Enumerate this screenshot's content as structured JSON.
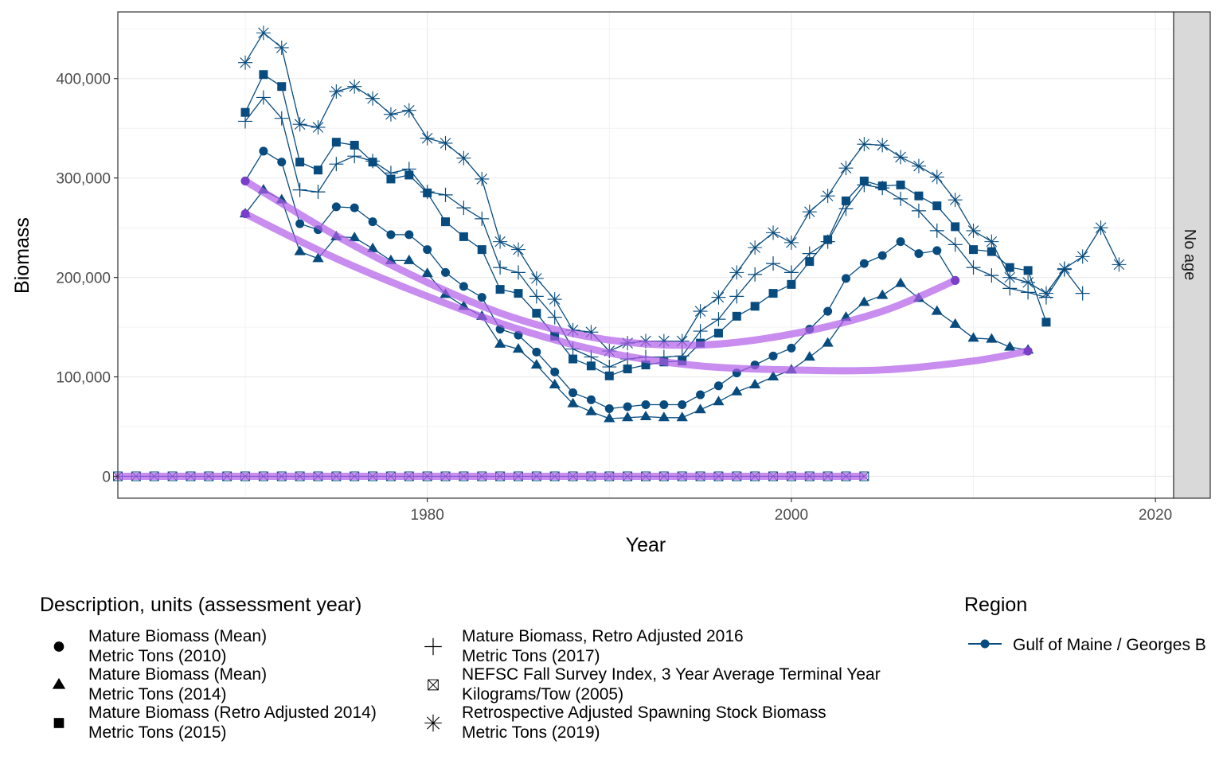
{
  "chart_data": {
    "type": "line",
    "xlabel": "Year",
    "ylabel": "Biomass",
    "xlim": [
      1963,
      2021
    ],
    "ylim": [
      -22000,
      467000
    ],
    "x_ticks": [
      1980,
      2000,
      2020
    ],
    "y_ticks": [
      0,
      100000,
      200000,
      300000,
      400000
    ],
    "y_tick_labels": [
      "0",
      "100,000",
      "200,000",
      "300,000",
      "400,000"
    ],
    "grid": true,
    "facet_label": "No age",
    "colors": {
      "series": "#084c7f",
      "trend": "#b05ce8",
      "panel_border": "#333333",
      "grid": "#ebebeb",
      "strip": "#d9d9d9"
    },
    "legend_title": "Description, units (assessment year)",
    "region_legend_title": "Region",
    "region_legend_label": "Gulf of Maine / Georges B",
    "series": [
      {
        "label_line1": "Mature Biomass (Mean)",
        "label_line2": "Metric Tons (2010)",
        "marker": "circle",
        "x": [
          1970,
          1971,
          1972,
          1973,
          1974,
          1975,
          1976,
          1977,
          1978,
          1979,
          1980,
          1981,
          1982,
          1983,
          1984,
          1985,
          1986,
          1987,
          1988,
          1989,
          1990,
          1991,
          1992,
          1993,
          1994,
          1995,
          1996,
          1997,
          1998,
          1999,
          2000,
          2001,
          2002,
          2003,
          2004,
          2005,
          2006,
          2007,
          2008,
          2009
        ],
        "y": [
          297000,
          327000,
          316000,
          254000,
          248000,
          271000,
          270000,
          256000,
          243000,
          243000,
          228000,
          205000,
          191000,
          180000,
          148000,
          142000,
          125000,
          105000,
          84000,
          77000,
          68000,
          70000,
          72000,
          72000,
          72000,
          82000,
          91000,
          104000,
          112000,
          121000,
          129000,
          148000,
          166000,
          199000,
          214000,
          222000,
          236000,
          224000,
          227000,
          197000
        ]
      },
      {
        "label_line1": "Mature Biomass (Mean)",
        "label_line2": "Metric Tons (2014)",
        "marker": "triangle",
        "x": [
          1970,
          1971,
          1972,
          1973,
          1974,
          1975,
          1976,
          1977,
          1978,
          1979,
          1980,
          1981,
          1982,
          1983,
          1984,
          1985,
          1986,
          1987,
          1988,
          1989,
          1990,
          1991,
          1992,
          1993,
          1994,
          1995,
          1996,
          1997,
          1998,
          1999,
          2000,
          2001,
          2002,
          2003,
          2004,
          2005,
          2006,
          2007,
          2008,
          2009,
          2010,
          2011,
          2012,
          2013
        ],
        "y": [
          264000,
          288000,
          278000,
          226000,
          219000,
          241000,
          240000,
          229000,
          217000,
          217000,
          204000,
          183000,
          171000,
          161000,
          133000,
          128000,
          112000,
          92000,
          73000,
          65000,
          58000,
          59000,
          60000,
          59000,
          59000,
          67000,
          75000,
          85000,
          92000,
          100000,
          107000,
          120000,
          134000,
          160000,
          175000,
          182000,
          194000,
          179000,
          166000,
          153000,
          139000,
          138000,
          130000,
          127000
        ]
      },
      {
        "label_line1": "Mature Biomass (Retro Adjusted 2014)",
        "label_line2": "Metric Tons (2015)",
        "marker": "square",
        "x": [
          1970,
          1971,
          1972,
          1973,
          1974,
          1975,
          1976,
          1977,
          1978,
          1979,
          1980,
          1981,
          1982,
          1983,
          1984,
          1985,
          1986,
          1987,
          1988,
          1989,
          1990,
          1991,
          1992,
          1993,
          1994,
          1995,
          1996,
          1997,
          1998,
          1999,
          2000,
          2001,
          2002,
          2003,
          2004,
          2005,
          2006,
          2007,
          2008,
          2009,
          2010,
          2011,
          2012,
          2013,
          2014
        ],
        "y": [
          366000,
          404000,
          392000,
          316000,
          308000,
          336000,
          333000,
          316000,
          299000,
          303000,
          285000,
          256000,
          241000,
          228000,
          188000,
          184000,
          164000,
          141000,
          118000,
          111000,
          101000,
          108000,
          112000,
          115000,
          116000,
          134000,
          144000,
          161000,
          171000,
          184000,
          193000,
          216000,
          238000,
          277000,
          297000,
          292000,
          293000,
          282000,
          272000,
          251000,
          228000,
          226000,
          210000,
          207000,
          155000
        ]
      },
      {
        "label_line1": "Mature Biomass, Retro Adjusted 2016",
        "label_line2": "Metric Tons (2017)",
        "marker": "plus",
        "x": [
          1970,
          1971,
          1972,
          1973,
          1974,
          1975,
          1976,
          1977,
          1978,
          1979,
          1980,
          1981,
          1982,
          1983,
          1984,
          1985,
          1986,
          1987,
          1988,
          1989,
          1990,
          1991,
          1992,
          1993,
          1994,
          1995,
          1996,
          1997,
          1998,
          1999,
          2000,
          2001,
          2002,
          2003,
          2004,
          2005,
          2006,
          2007,
          2008,
          2009,
          2010,
          2011,
          2012,
          2013,
          2014,
          2015,
          2016
        ],
        "y": [
          357000,
          381000,
          360000,
          288000,
          286000,
          314000,
          322000,
          317000,
          305000,
          309000,
          286000,
          283000,
          270000,
          259000,
          210000,
          205000,
          181000,
          160000,
          128000,
          120000,
          110000,
          118000,
          120000,
          120000,
          121000,
          146000,
          158000,
          181000,
          203000,
          214000,
          205000,
          224000,
          236000,
          269000,
          293000,
          290000,
          279000,
          267000,
          247000,
          233000,
          210000,
          202000,
          189000,
          185000,
          180000,
          208000,
          184000
        ]
      },
      {
        "label_line1": "NEFSC Fall Survey Index, 3 Year Average Terminal Year",
        "label_line2": "Kilograms/Tow (2005)",
        "marker": "boxcross",
        "x": [
          1963,
          1964,
          1965,
          1966,
          1967,
          1968,
          1969,
          1970,
          1971,
          1972,
          1973,
          1974,
          1975,
          1976,
          1977,
          1978,
          1979,
          1980,
          1981,
          1982,
          1983,
          1984,
          1985,
          1986,
          1987,
          1988,
          1989,
          1990,
          1991,
          1992,
          1993,
          1994,
          1995,
          1996,
          1997,
          1998,
          1999,
          2000,
          2001,
          2002,
          2003,
          2004
        ],
        "y": [
          0,
          0,
          0,
          0,
          0,
          0,
          0,
          0,
          0,
          0,
          0,
          0,
          0,
          0,
          0,
          0,
          0,
          0,
          0,
          0,
          0,
          0,
          0,
          0,
          0,
          0,
          0,
          0,
          0,
          0,
          0,
          0,
          0,
          0,
          0,
          0,
          0,
          0,
          0,
          0,
          0,
          0
        ]
      },
      {
        "label_line1": "Retrospective Adjusted Spawning Stock Biomass",
        "label_line2": "Metric Tons (2019)",
        "marker": "asterisk",
        "x": [
          1970,
          1971,
          1972,
          1973,
          1974,
          1975,
          1976,
          1977,
          1978,
          1979,
          1980,
          1981,
          1982,
          1983,
          1984,
          1985,
          1986,
          1987,
          1988,
          1989,
          1990,
          1991,
          1992,
          1993,
          1994,
          1995,
          1996,
          1997,
          1998,
          1999,
          2000,
          2001,
          2002,
          2003,
          2004,
          2005,
          2006,
          2007,
          2008,
          2009,
          2010,
          2011,
          2012,
          2013,
          2014,
          2015,
          2016,
          2017,
          2018
        ],
        "y": [
          416000,
          446000,
          431000,
          354000,
          351000,
          387000,
          392000,
          380000,
          364000,
          368000,
          340000,
          335000,
          320000,
          299000,
          236000,
          228000,
          199000,
          178000,
          147000,
          145000,
          126000,
          134000,
          136000,
          136000,
          136000,
          166000,
          180000,
          205000,
          230000,
          245000,
          235000,
          266000,
          282000,
          310000,
          334000,
          333000,
          321000,
          312000,
          301000,
          278000,
          247000,
          236000,
          200000,
          195000,
          184000,
          209000,
          221000,
          250000,
          213000
        ]
      }
    ],
    "trend_lines": [
      {
        "x": [
          1970,
          1975,
          1980,
          1985,
          1990,
          1995,
          2000,
          2005,
          2009
        ],
        "y": [
          297000,
          242000,
          195000,
          158000,
          137000,
          132000,
          143000,
          166000,
          197000
        ]
      },
      {
        "x": [
          1970,
          1975,
          1980,
          1985,
          1990,
          1995,
          2000,
          2005,
          2010,
          2013
        ],
        "y": [
          264000,
          219000,
          181000,
          148000,
          124000,
          111000,
          107000,
          107000,
          116000,
          126000
        ]
      },
      {
        "x": [
          1963,
          2004
        ],
        "y": [
          0,
          0
        ]
      }
    ],
    "trend_points": [
      {
        "x": 1970,
        "y": 297000
      },
      {
        "x": 2009,
        "y": 197000
      },
      {
        "x": 1970,
        "y": 264000
      },
      {
        "x": 2013,
        "y": 126000
      }
    ]
  }
}
